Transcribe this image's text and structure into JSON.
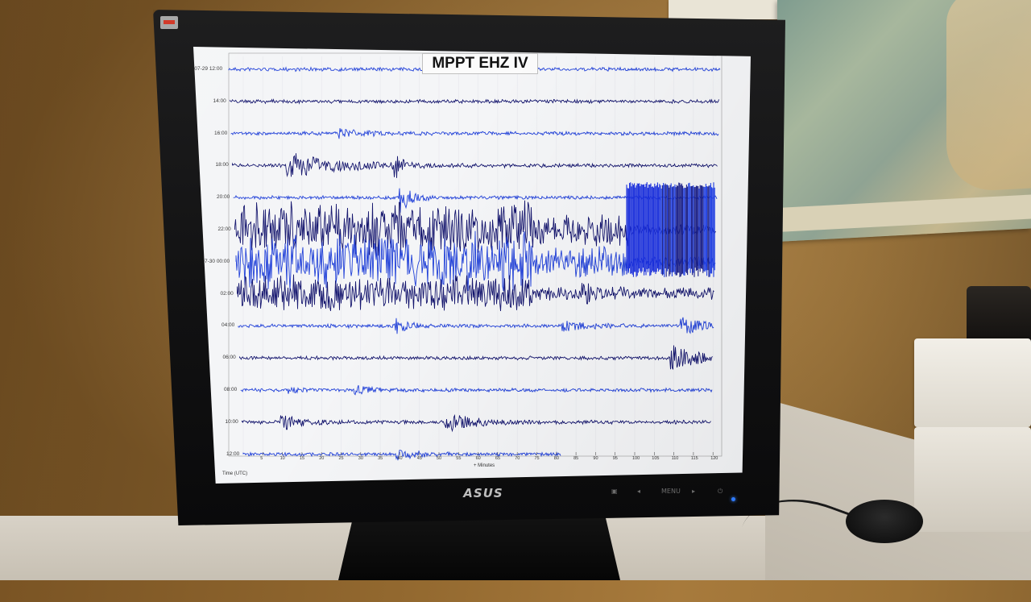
{
  "seismogram": {
    "title": "MPPT EHZ IV",
    "row_labels": [
      "07-29 12:00",
      "14:00",
      "16:00",
      "18:00",
      "20:00",
      "22:00",
      "07-30 00:00",
      "02:00",
      "04:00",
      "06:00",
      "08:00",
      "10:00",
      "12:00"
    ],
    "x_ticks": [
      "5",
      "10",
      "15",
      "20",
      "25",
      "30",
      "35",
      "40",
      "45",
      "50",
      "55",
      "60",
      "65",
      "70",
      "75",
      "80",
      "85",
      "90",
      "95",
      "100",
      "105",
      "110",
      "115",
      "120"
    ],
    "x_axis_label": "+ Minutes",
    "y_axis_label": "Time (UTC)",
    "trace_colors": [
      "#1f3fd8",
      "#15166e"
    ]
  },
  "monitor": {
    "brand": "ASUS",
    "controls": [
      "▣",
      "◂",
      "MENU",
      "▸",
      "⏻"
    ],
    "led_color": "#2f7bff"
  }
}
